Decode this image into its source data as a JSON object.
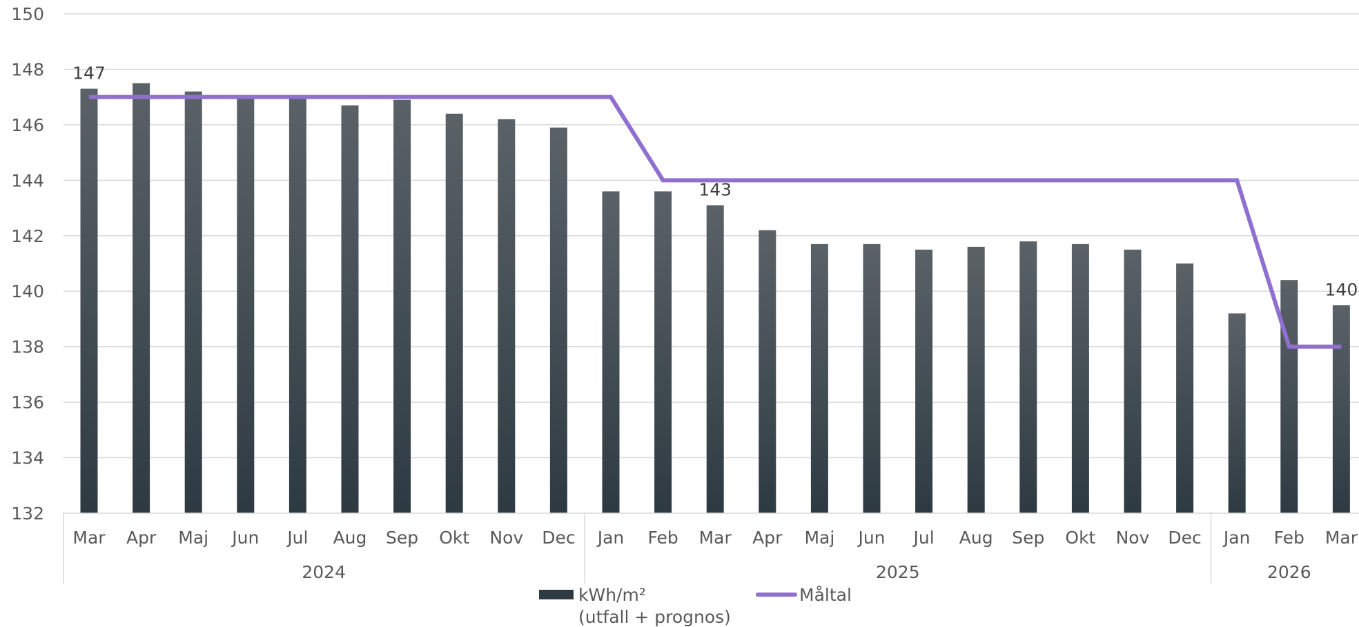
{
  "chart_data": {
    "type": "bar",
    "title": "",
    "xlabel": "",
    "ylabel": "",
    "ylim": [
      132,
      150
    ],
    "ytick_step": 2,
    "grid": true,
    "categories": [
      "Mar",
      "Apr",
      "Maj",
      "Jun",
      "Jul",
      "Aug",
      "Sep",
      "Okt",
      "Nov",
      "Dec",
      "Jan",
      "Feb",
      "Mar",
      "Apr",
      "Maj",
      "Jun",
      "Jul",
      "Aug",
      "Sep",
      "Okt",
      "Nov",
      "Dec",
      "Jan",
      "Feb",
      "Mar"
    ],
    "year_groups": [
      {
        "label": "2024",
        "count": 10
      },
      {
        "label": "2025",
        "count": 12
      },
      {
        "label": "2026",
        "count": 3
      }
    ],
    "series": [
      {
        "name": "kWh/m² (utfall + prognos)",
        "legend_lines": [
          "kWh/m²",
          "(utfall + prognos)"
        ],
        "type": "bar",
        "color": "#2e3a42",
        "color_top": "#5a6268",
        "values": [
          147.3,
          147.5,
          147.2,
          147.0,
          147.0,
          146.7,
          146.9,
          146.4,
          146.2,
          145.9,
          143.6,
          143.6,
          143.1,
          142.2,
          141.7,
          141.7,
          141.5,
          141.6,
          141.8,
          141.7,
          141.5,
          141.0,
          139.2,
          140.4,
          139.5
        ]
      },
      {
        "name": "Måltal",
        "legend_lines": [
          "Måltal"
        ],
        "type": "line",
        "color": "#8f6fcf",
        "values": [
          147,
          147,
          147,
          147,
          147,
          147,
          147,
          147,
          147,
          147,
          147,
          144,
          144,
          144,
          144,
          144,
          144,
          144,
          144,
          144,
          144,
          144,
          144,
          138,
          138
        ]
      }
    ],
    "data_labels": [
      {
        "index": 0,
        "text": "147"
      },
      {
        "index": 12,
        "text": "143"
      },
      {
        "index": 24,
        "text": "140"
      }
    ],
    "legend_position": "bottom"
  }
}
